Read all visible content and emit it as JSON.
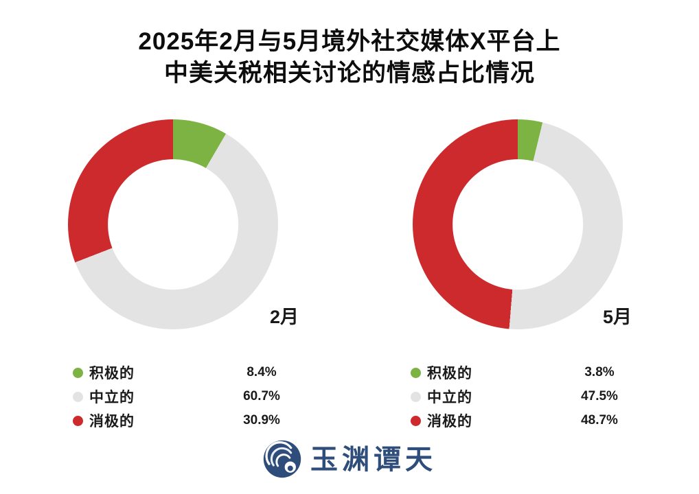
{
  "header": {
    "title_line1": "2025年2月与5月境外社交媒体X平台上",
    "title_line2": "中美关税相关讨论的情感占比情况"
  },
  "chart_data": [
    {
      "type": "pie",
      "subtype": "donut",
      "title": "2月",
      "categories": [
        "积极的",
        "中立的",
        "消极的"
      ],
      "values": [
        8.4,
        60.7,
        30.9
      ],
      "value_labels": [
        "8.4%",
        "60.7%",
        "30.9%"
      ],
      "colors": [
        "#7cb342",
        "#e4e3e3",
        "#cc2a2c"
      ],
      "start_angle": "top",
      "direction": "clockwise",
      "inner_radius_ratio": 0.62,
      "legend_position": "below-chart"
    },
    {
      "type": "pie",
      "subtype": "donut",
      "title": "5月",
      "categories": [
        "积极的",
        "中立的",
        "消极的"
      ],
      "values": [
        3.8,
        47.5,
        48.7
      ],
      "value_labels": [
        "3.8%",
        "47.5%",
        "48.7%"
      ],
      "colors": [
        "#7cb342",
        "#e4e3e3",
        "#cc2a2c"
      ],
      "start_angle": "top",
      "direction": "clockwise",
      "inner_radius_ratio": 0.62,
      "legend_position": "below-chart"
    }
  ],
  "brand": {
    "name": "玉渊谭天",
    "color": "#2f4d7a",
    "icon": "wave-whirlpool-icon"
  },
  "colors": {
    "background": "#ffffff",
    "positive": "#7cb342",
    "neutral": "#e4e3e3",
    "negative": "#cc2a2c",
    "title_text": "#0d0d0d"
  }
}
